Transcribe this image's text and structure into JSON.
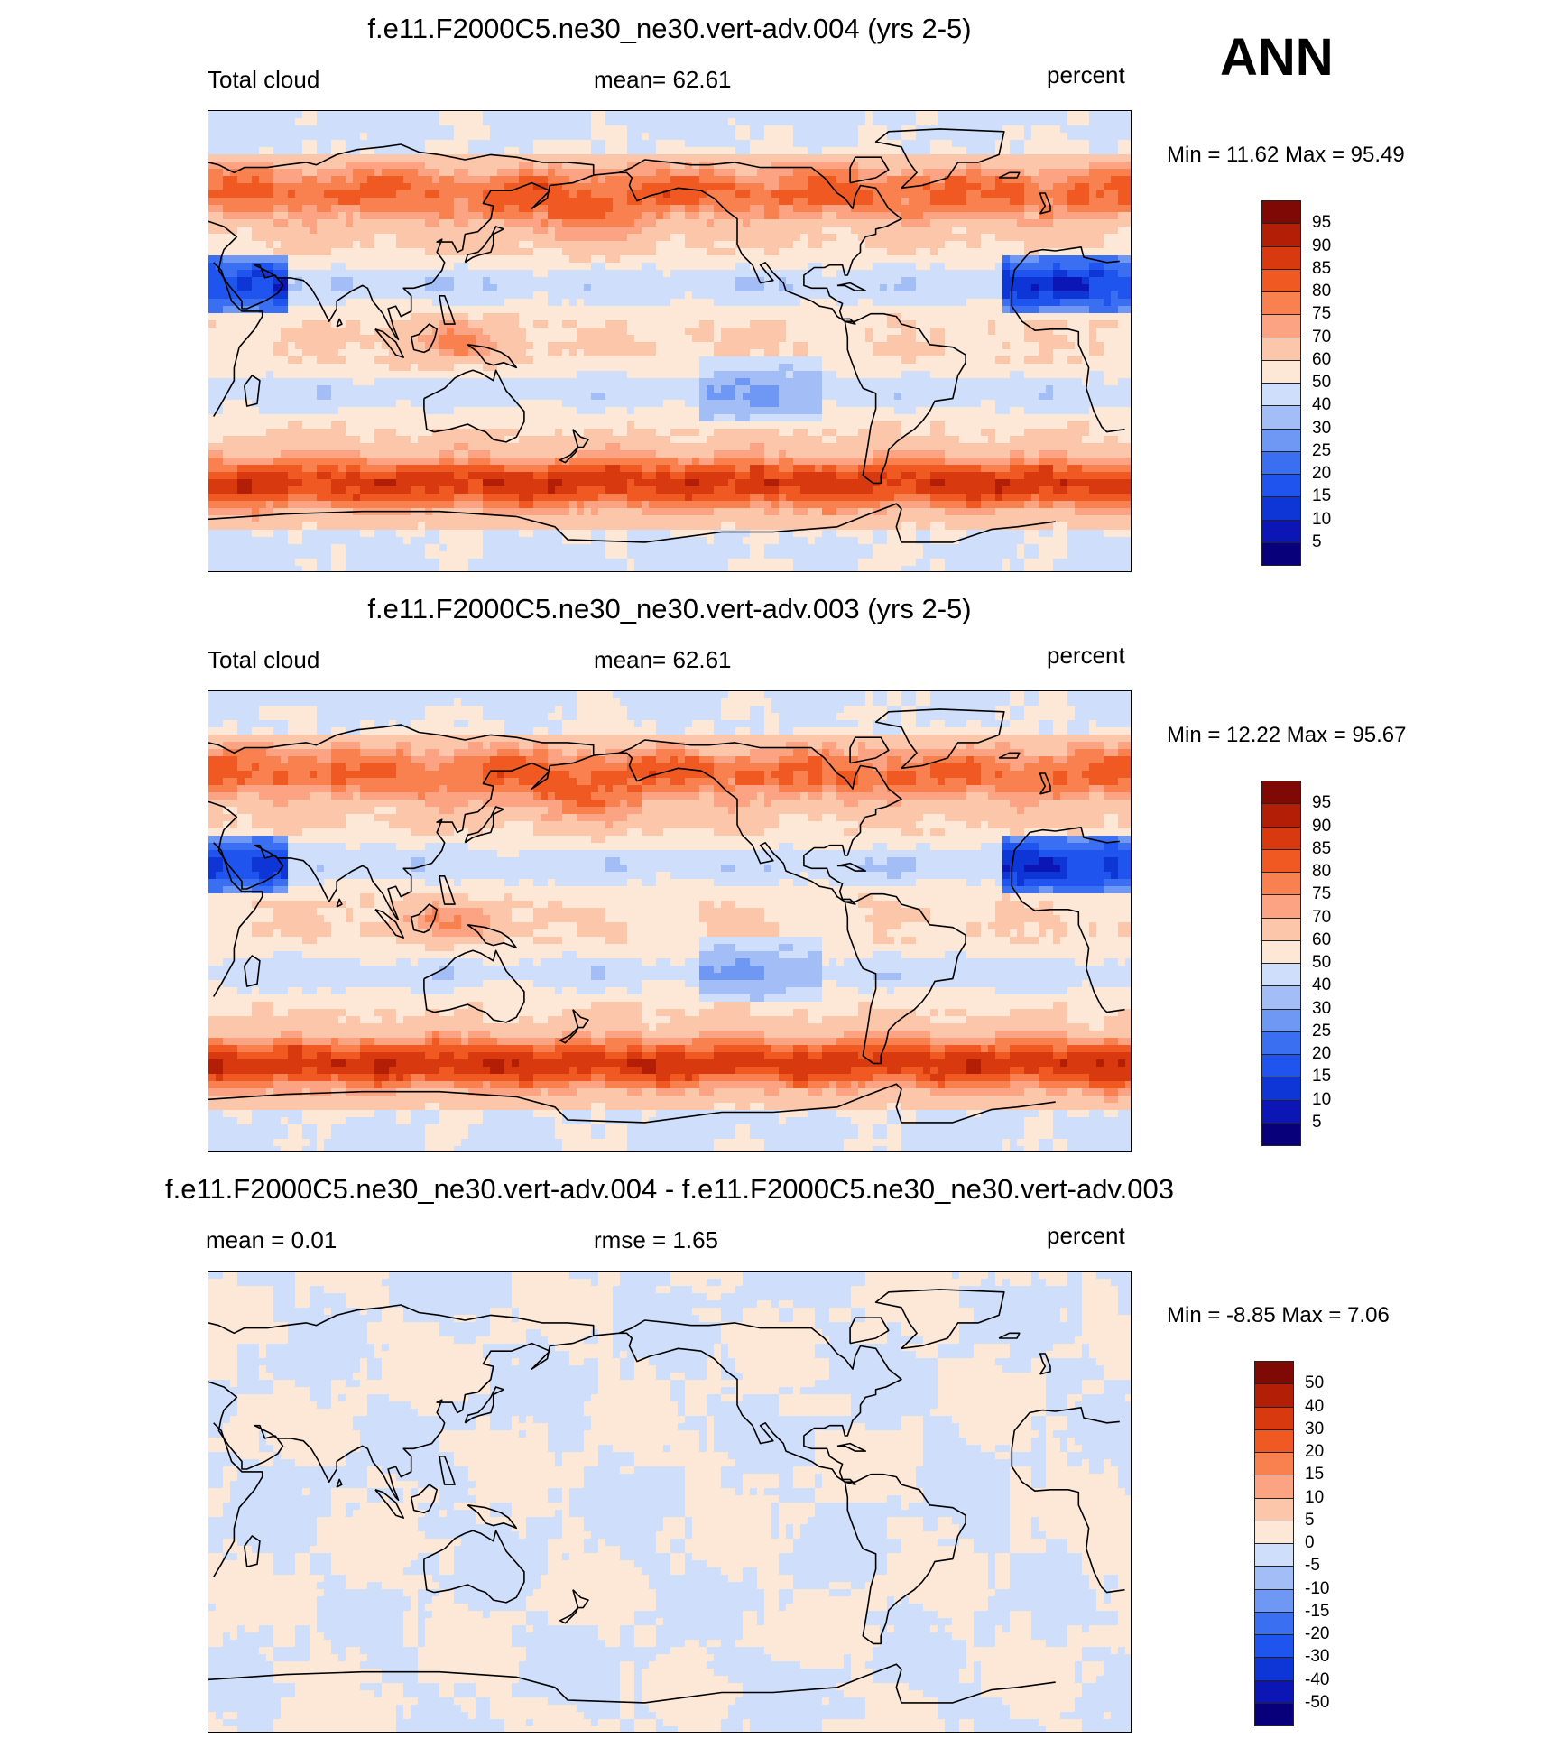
{
  "season_label": "ANN",
  "colors": {
    "abs_levels": [
      "#08007a",
      "#0b16b4",
      "#0e36d6",
      "#1f55ee",
      "#3a6ff2",
      "#6f97f4",
      "#a3bef6",
      "#cfdefa",
      "#fde8d8",
      "#fcc6aa",
      "#fca383",
      "#f9804f",
      "#f05a22",
      "#d9390e",
      "#b31f06",
      "#7f0a05"
    ],
    "diff_levels": [
      "#08007a",
      "#0b16b4",
      "#0e36d6",
      "#1f55ee",
      "#3a6ff2",
      "#6f97f4",
      "#a3bef6",
      "#cfdefa",
      "#fde8d8",
      "#fcc6aa",
      "#fca383",
      "#f9804f",
      "#f05a22",
      "#d9390e",
      "#b31f06",
      "#7f0a05"
    ]
  },
  "panels": [
    {
      "title": "f.e11.F2000C5.ne30_ne30.vert-adv.004 (yrs 2-5)",
      "left_label": "Total cloud",
      "center_label": "mean=  62.61",
      "units": "percent",
      "minmax": "Min =  11.62 Max =  95.49",
      "colorbar_labels": [
        "95",
        "90",
        "85",
        "80",
        "75",
        "70",
        "60",
        "50",
        "40",
        "30",
        "25",
        "20",
        "15",
        "10",
        "5"
      ],
      "field": "absolute"
    },
    {
      "title": "f.e11.F2000C5.ne30_ne30.vert-adv.003 (yrs 2-5)",
      "left_label": "Total cloud",
      "center_label": "mean=  62.61",
      "units": "percent",
      "minmax": "Min =  12.22 Max =  95.67",
      "colorbar_labels": [
        "95",
        "90",
        "85",
        "80",
        "75",
        "70",
        "60",
        "50",
        "40",
        "30",
        "25",
        "20",
        "15",
        "10",
        "5"
      ],
      "field": "absolute"
    },
    {
      "title": "f.e11.F2000C5.ne30_ne30.vert-adv.004 - f.e11.F2000C5.ne30_ne30.vert-adv.003",
      "left_label": "mean =   0.01",
      "center_label": "rmse =   1.65",
      "units": "percent",
      "minmax": "Min =  -8.85 Max =   7.06",
      "colorbar_labels": [
        "50",
        "40",
        "30",
        "20",
        "15",
        "10",
        "5",
        "0",
        "-5",
        "-10",
        "-15",
        "-20",
        "-30",
        "-40",
        "-50"
      ],
      "field": "difference"
    }
  ]
}
